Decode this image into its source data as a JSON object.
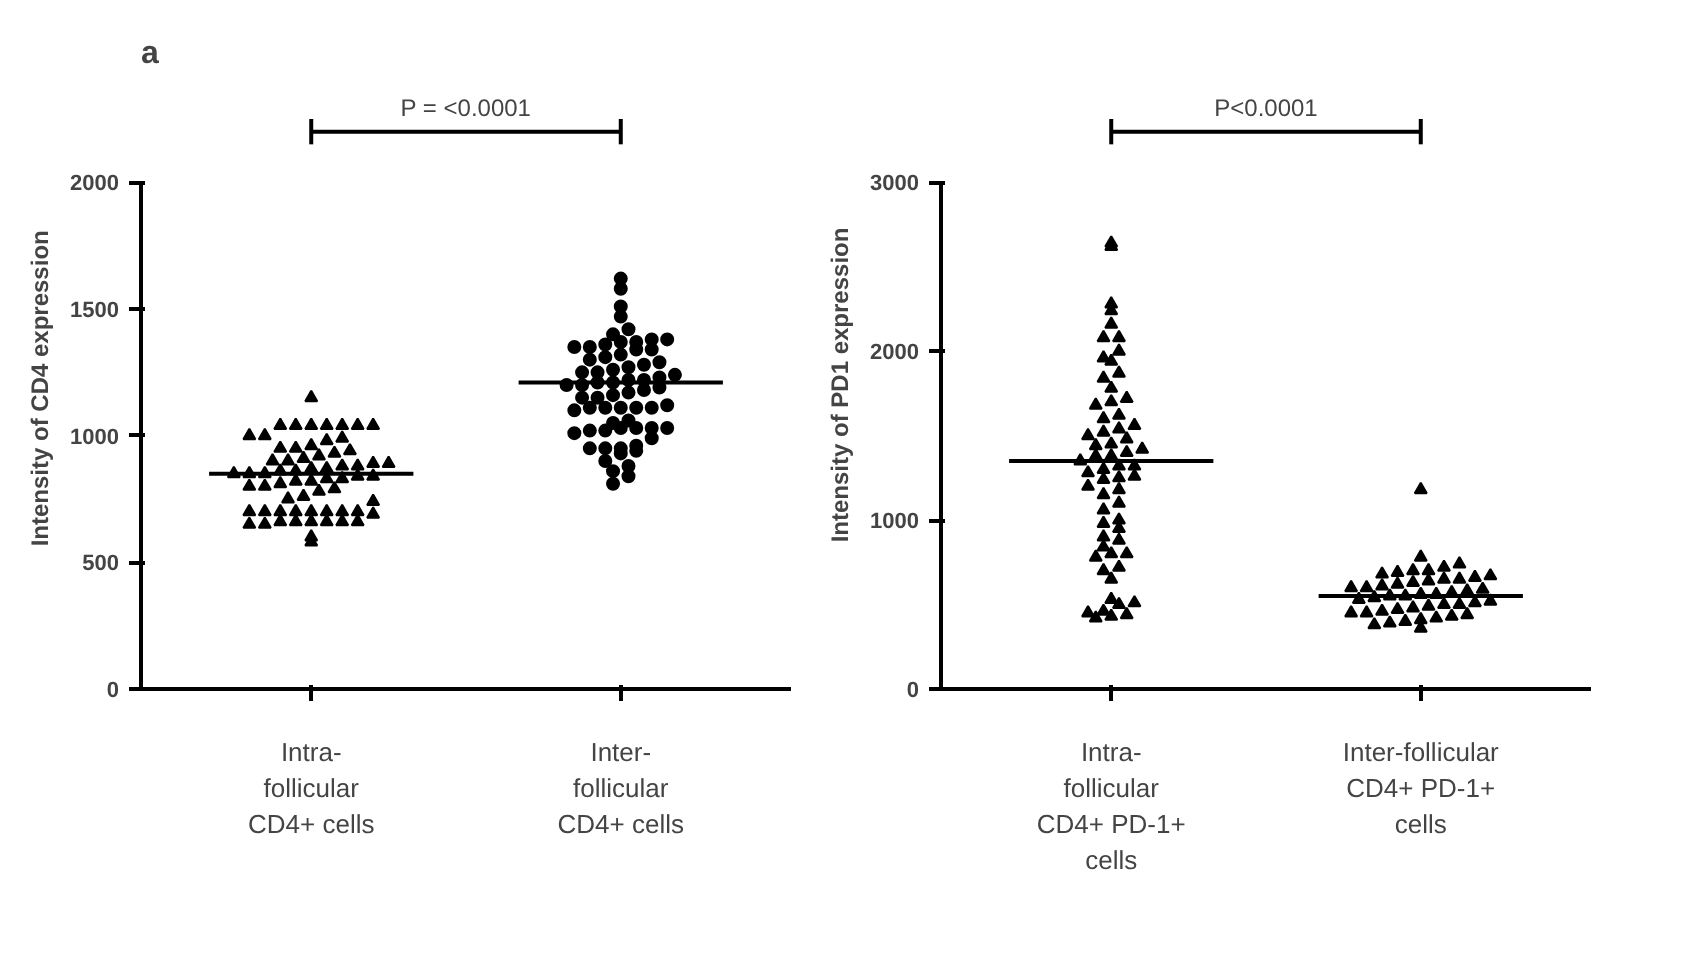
{
  "chart_data": [
    {
      "type": "scatter",
      "title": "a",
      "ylabel": "Intensity of  CD4 expression",
      "categories": [
        "Intra-\nfollicular\nCD4+ cells",
        "Inter-\nfollicular\nCD4+ cells"
      ],
      "ylim": [
        0,
        2000
      ],
      "yticks": [
        0,
        500,
        1000,
        1500,
        2000
      ],
      "grid": false,
      "annotations": [
        "P = <0.0001"
      ],
      "ref_lines": [
        {
          "axis": "y",
          "value": 850,
          "color": "#000000"
        },
        {
          "axis": "y",
          "value": 1210,
          "color": "#000000"
        }
      ],
      "series": [
        {
          "marker": "triangle",
          "color": "#000000",
          "values": [
            1150,
            1040,
            1040,
            1040,
            1040,
            1040,
            1040,
            1040,
            1000,
            1000,
            990,
            980,
            960,
            950,
            950,
            940,
            930,
            920,
            910,
            900,
            900,
            890,
            890,
            880,
            880,
            870,
            870,
            860,
            860,
            850,
            850,
            850,
            840,
            840,
            830,
            830,
            820,
            820,
            810,
            800,
            800,
            790,
            780,
            760,
            750,
            740,
            700,
            700,
            700,
            700,
            700,
            700,
            700,
            700,
            690,
            660,
            660,
            660,
            660,
            660,
            660,
            650,
            650,
            600,
            580
          ],
          "x": [
            "Intra-\nfollicular\nCD4+ cells",
            "Intra-\nfollicular\nCD4+ cells",
            "Intra-\nfollicular\nCD4+ cells",
            "Intra-\nfollicular\nCD4+ cells",
            "Intra-\nfollicular\nCD4+ cells",
            "Intra-\nfollicular\nCD4+ cells",
            "Intra-\nfollicular\nCD4+ cells",
            "Intra-\nfollicular\nCD4+ cells",
            "Intra-\nfollicular\nCD4+ cells",
            "Intra-\nfollicular\nCD4+ cells",
            "Intra-\nfollicular\nCD4+ cells",
            "Intra-\nfollicular\nCD4+ cells",
            "Intra-\nfollicular\nCD4+ cells",
            "Intra-\nfollicular\nCD4+ cells",
            "Intra-\nfollicular\nCD4+ cells",
            "Intra-\nfollicular\nCD4+ cells",
            "Intra-\nfollicular\nCD4+ cells",
            "Intra-\nfollicular\nCD4+ cells",
            "Intra-\nfollicular\nCD4+ cells",
            "Intra-\nfollicular\nCD4+ cells",
            "Intra-\nfollicular\nCD4+ cells",
            "Intra-\nfollicular\nCD4+ cells",
            "Intra-\nfollicular\nCD4+ cells",
            "Intra-\nfollicular\nCD4+ cells",
            "Intra-\nfollicular\nCD4+ cells",
            "Intra-\nfollicular\nCD4+ cells",
            "Intra-\nfollicular\nCD4+ cells",
            "Intra-\nfollicular\nCD4+ cells",
            "Intra-\nfollicular\nCD4+ cells",
            "Intra-\nfollicular\nCD4+ cells",
            "Intra-\nfollicular\nCD4+ cells",
            "Intra-\nfollicular\nCD4+ cells",
            "Intra-\nfollicular\nCD4+ cells",
            "Intra-\nfollicular\nCD4+ cells",
            "Intra-\nfollicular\nCD4+ cells",
            "Intra-\nfollicular\nCD4+ cells",
            "Intra-\nfollicular\nCD4+ cells",
            "Intra-\nfollicular\nCD4+ cells",
            "Intra-\nfollicular\nCD4+ cells",
            "Intra-\nfollicular\nCD4+ cells",
            "Intra-\nfollicular\nCD4+ cells",
            "Intra-\nfollicular\nCD4+ cells",
            "Intra-\nfollicular\nCD4+ cells",
            "Intra-\nfollicular\nCD4+ cells",
            "Intra-\nfollicular\nCD4+ cells",
            "Intra-\nfollicular\nCD4+ cells",
            "Intra-\nfollicular\nCD4+ cells",
            "Intra-\nfollicular\nCD4+ cells",
            "Intra-\nfollicular\nCD4+ cells",
            "Intra-\nfollicular\nCD4+ cells",
            "Intra-\nfollicular\nCD4+ cells",
            "Intra-\nfollicular\nCD4+ cells",
            "Intra-\nfollicular\nCD4+ cells",
            "Intra-\nfollicular\nCD4+ cells",
            "Intra-\nfollicular\nCD4+ cells",
            "Intra-\nfollicular\nCD4+ cells",
            "Intra-\nfollicular\nCD4+ cells",
            "Intra-\nfollicular\nCD4+ cells",
            "Intra-\nfollicular\nCD4+ cells",
            "Intra-\nfollicular\nCD4+ cells",
            "Intra-\nfollicular\nCD4+ cells",
            "Intra-\nfollicular\nCD4+ cells",
            "Intra-\nfollicular\nCD4+ cells",
            "Intra-\nfollicular\nCD4+ cells",
            "Intra-\nfollicular\nCD4+ cells"
          ]
        },
        {
          "marker": "circle",
          "color": "#000000",
          "values": [
            1620,
            1580,
            1510,
            1470,
            1420,
            1400,
            1380,
            1380,
            1370,
            1370,
            1360,
            1350,
            1350,
            1340,
            1340,
            1320,
            1310,
            1300,
            1290,
            1280,
            1270,
            1260,
            1250,
            1250,
            1240,
            1230,
            1220,
            1220,
            1210,
            1210,
            1200,
            1200,
            1190,
            1180,
            1170,
            1160,
            1150,
            1150,
            1120,
            1110,
            1110,
            1110,
            1110,
            1110,
            1100,
            1060,
            1050,
            1030,
            1030,
            1030,
            1030,
            1020,
            1020,
            1010,
            990,
            960,
            950,
            950,
            950,
            940,
            930,
            900,
            880,
            860,
            840,
            810
          ],
          "x": [
            "Inter-\nfollicular\nCD4+ cells",
            "Inter-\nfollicular\nCD4+ cells",
            "Inter-\nfollicular\nCD4+ cells",
            "Inter-\nfollicular\nCD4+ cells",
            "Inter-\nfollicular\nCD4+ cells",
            "Inter-\nfollicular\nCD4+ cells",
            "Inter-\nfollicular\nCD4+ cells",
            "Inter-\nfollicular\nCD4+ cells",
            "Inter-\nfollicular\nCD4+ cells",
            "Inter-\nfollicular\nCD4+ cells",
            "Inter-\nfollicular\nCD4+ cells",
            "Inter-\nfollicular\nCD4+ cells",
            "Inter-\nfollicular\nCD4+ cells",
            "Inter-\nfollicular\nCD4+ cells",
            "Inter-\nfollicular\nCD4+ cells",
            "Inter-\nfollicular\nCD4+ cells",
            "Inter-\nfollicular\nCD4+ cells",
            "Inter-\nfollicular\nCD4+ cells",
            "Inter-\nfollicular\nCD4+ cells",
            "Inter-\nfollicular\nCD4+ cells",
            "Inter-\nfollicular\nCD4+ cells",
            "Inter-\nfollicular\nCD4+ cells",
            "Inter-\nfollicular\nCD4+ cells",
            "Inter-\nfollicular\nCD4+ cells",
            "Inter-\nfollicular\nCD4+ cells",
            "Inter-\nfollicular\nCD4+ cells",
            "Inter-\nfollicular\nCD4+ cells",
            "Inter-\nfollicular\nCD4+ cells",
            "Inter-\nfollicular\nCD4+ cells",
            "Inter-\nfollicular\nCD4+ cells",
            "Inter-\nfollicular\nCD4+ cells",
            "Inter-\nfollicular\nCD4+ cells",
            "Inter-\nfollicular\nCD4+ cells",
            "Inter-\nfollicular\nCD4+ cells",
            "Inter-\nfollicular\nCD4+ cells",
            "Inter-\nfollicular\nCD4+ cells",
            "Inter-\nfollicular\nCD4+ cells",
            "Inter-\nfollicular\nCD4+ cells",
            "Inter-\nfollicular\nCD4+ cells",
            "Inter-\nfollicular\nCD4+ cells",
            "Inter-\nfollicular\nCD4+ cells",
            "Inter-\nfollicular\nCD4+ cells",
            "Inter-\nfollicular\nCD4+ cells",
            "Inter-\nfollicular\nCD4+ cells",
            "Inter-\nfollicular\nCD4+ cells",
            "Inter-\nfollicular\nCD4+ cells",
            "Inter-\nfollicular\nCD4+ cells",
            "Inter-\nfollicular\nCD4+ cells",
            "Inter-\nfollicular\nCD4+ cells",
            "Inter-\nfollicular\nCD4+ cells",
            "Inter-\nfollicular\nCD4+ cells",
            "Inter-\nfollicular\nCD4+ cells",
            "Inter-\nfollicular\nCD4+ cells",
            "Inter-\nfollicular\nCD4+ cells",
            "Inter-\nfollicular\nCD4+ cells",
            "Inter-\nfollicular\nCD4+ cells",
            "Inter-\nfollicular\nCD4+ cells",
            "Inter-\nfollicular\nCD4+ cells",
            "Inter-\nfollicular\nCD4+ cells",
            "Inter-\nfollicular\nCD4+ cells",
            "Inter-\nfollicular\nCD4+ cells",
            "Inter-\nfollicular\nCD4+ cells",
            "Inter-\nfollicular\nCD4+ cells",
            "Inter-\nfollicular\nCD4+ cells",
            "Inter-\nfollicular\nCD4+ cells",
            "Inter-\nfollicular\nCD4+ cells"
          ]
        }
      ]
    },
    {
      "type": "scatter",
      "ylabel": "Intensity of PD1 expression",
      "categories": [
        "Intra-\nfollicular\nCD4+ PD-1+\ncells",
        "Inter-follicular\nCD4+ PD-1+\ncells"
      ],
      "ylim": [
        0,
        3000
      ],
      "yticks": [
        0,
        1000,
        2000,
        3000
      ],
      "grid": false,
      "annotations": [
        "P<0.0001"
      ],
      "ref_lines": [
        {
          "axis": "y",
          "value": 1350,
          "color": "#000000"
        },
        {
          "axis": "y",
          "value": 550,
          "color": "#000000"
        }
      ],
      "series": [
        {
          "marker": "triangle",
          "color": "#000000",
          "values": [
            2640,
            2620,
            2280,
            2240,
            2160,
            2080,
            2080,
            2000,
            1960,
            1940,
            1870,
            1840,
            1780,
            1720,
            1700,
            1680,
            1620,
            1600,
            1560,
            1540,
            1520,
            1500,
            1480,
            1450,
            1440,
            1420,
            1400,
            1380,
            1380,
            1350,
            1320,
            1320,
            1300,
            1280,
            1260,
            1250,
            1240,
            1200,
            1180,
            1150,
            1100,
            1060,
            1000,
            980,
            950,
            900,
            880,
            840,
            800,
            800,
            780,
            720,
            700,
            650,
            530,
            510,
            500,
            460,
            450,
            440,
            430,
            420
          ],
          "x": [
            "Intra-\nfollicular\nCD4+ PD-1+\ncells",
            "Intra-\nfollicular\nCD4+ PD-1+\ncells",
            "Intra-\nfollicular\nCD4+ PD-1+\ncells",
            "Intra-\nfollicular\nCD4+ PD-1+\ncells",
            "Intra-\nfollicular\nCD4+ PD-1+\ncells",
            "Intra-\nfollicular\nCD4+ PD-1+\ncells",
            "Intra-\nfollicular\nCD4+ PD-1+\ncells",
            "Intra-\nfollicular\nCD4+ PD-1+\ncells",
            "Intra-\nfollicular\nCD4+ PD-1+\ncells",
            "Intra-\nfollicular\nCD4+ PD-1+\ncells",
            "Intra-\nfollicular\nCD4+ PD-1+\ncells",
            "Intra-\nfollicular\nCD4+ PD-1+\ncells",
            "Intra-\nfollicular\nCD4+ PD-1+\ncells",
            "Intra-\nfollicular\nCD4+ PD-1+\ncells",
            "Intra-\nfollicular\nCD4+ PD-1+\ncells",
            "Intra-\nfollicular\nCD4+ PD-1+\ncells",
            "Intra-\nfollicular\nCD4+ PD-1+\ncells",
            "Intra-\nfollicular\nCD4+ PD-1+\ncells",
            "Intra-\nfollicular\nCD4+ PD-1+\ncells",
            "Intra-\nfollicular\nCD4+ PD-1+\ncells",
            "Intra-\nfollicular\nCD4+ PD-1+\ncells",
            "Intra-\nfollicular\nCD4+ PD-1+\ncells",
            "Intra-\nfollicular\nCD4+ PD-1+\ncells",
            "Intra-\nfollicular\nCD4+ PD-1+\ncells",
            "Intra-\nfollicular\nCD4+ PD-1+\ncells",
            "Intra-\nfollicular\nCD4+ PD-1+\ncells",
            "Intra-\nfollicular\nCD4+ PD-1+\ncells",
            "Intra-\nfollicular\nCD4+ PD-1+\ncells",
            "Intra-\nfollicular\nCD4+ PD-1+\ncells",
            "Intra-\nfollicular\nCD4+ PD-1+\ncells",
            "Intra-\nfollicular\nCD4+ PD-1+\ncells",
            "Intra-\nfollicular\nCD4+ PD-1+\ncells",
            "Intra-\nfollicular\nCD4+ PD-1+\ncells",
            "Intra-\nfollicular\nCD4+ PD-1+\ncells",
            "Intra-\nfollicular\nCD4+ PD-1+\ncells",
            "Intra-\nfollicular\nCD4+ PD-1+\ncells",
            "Intra-\nfollicular\nCD4+ PD-1+\ncells",
            "Intra-\nfollicular\nCD4+ PD-1+\ncells",
            "Intra-\nfollicular\nCD4+ PD-1+\ncells",
            "Intra-\nfollicular\nCD4+ PD-1+\ncells",
            "Intra-\nfollicular\nCD4+ PD-1+\ncells",
            "Intra-\nfollicular\nCD4+ PD-1+\ncells",
            "Intra-\nfollicular\nCD4+ PD-1+\ncells",
            "Intra-\nfollicular\nCD4+ PD-1+\ncells",
            "Intra-\nfollicular\nCD4+ PD-1+\ncells",
            "Intra-\nfollicular\nCD4+ PD-1+\ncells",
            "Intra-\nfollicular\nCD4+ PD-1+\ncells",
            "Intra-\nfollicular\nCD4+ PD-1+\ncells",
            "Intra-\nfollicular\nCD4+ PD-1+\ncells",
            "Intra-\nfollicular\nCD4+ PD-1+\ncells",
            "Intra-\nfollicular\nCD4+ PD-1+\ncells",
            "Intra-\nfollicular\nCD4+ PD-1+\ncells",
            "Intra-\nfollicular\nCD4+ PD-1+\ncells",
            "Intra-\nfollicular\nCD4+ PD-1+\ncells",
            "Intra-\nfollicular\nCD4+ PD-1+\ncells",
            "Intra-\nfollicular\nCD4+ PD-1+\ncells",
            "Intra-\nfollicular\nCD4+ PD-1+\ncells",
            "Intra-\nfollicular\nCD4+ PD-1+\ncells",
            "Intra-\nfollicular\nCD4+ PD-1+\ncells",
            "Intra-\nfollicular\nCD4+ PD-1+\ncells",
            "Intra-\nfollicular\nCD4+ PD-1+\ncells",
            "Intra-\nfollicular\nCD4+ PD-1+\ncells"
          ]
        },
        {
          "marker": "triangle",
          "color": "#000000",
          "values": [
            1180,
            780,
            740,
            720,
            700,
            700,
            690,
            680,
            670,
            660,
            650,
            650,
            640,
            630,
            620,
            610,
            600,
            600,
            590,
            580,
            570,
            560,
            560,
            550,
            550,
            540,
            530,
            520,
            510,
            500,
            500,
            490,
            480,
            470,
            460,
            450,
            450,
            440,
            430,
            420,
            410,
            400,
            390,
            380,
            360
          ],
          "x": [
            "Inter-follicular\nCD4+ PD-1+\ncells",
            "Inter-follicular\nCD4+ PD-1+\ncells",
            "Inter-follicular\nCD4+ PD-1+\ncells",
            "Inter-follicular\nCD4+ PD-1+\ncells",
            "Inter-follicular\nCD4+ PD-1+\ncells",
            "Inter-follicular\nCD4+ PD-1+\ncells",
            "Inter-follicular\nCD4+ PD-1+\ncells",
            "Inter-follicular\nCD4+ PD-1+\ncells",
            "Inter-follicular\nCD4+ PD-1+\ncells",
            "Inter-follicular\nCD4+ PD-1+\ncells",
            "Inter-follicular\nCD4+ PD-1+\ncells",
            "Inter-follicular\nCD4+ PD-1+\ncells",
            "Inter-follicular\nCD4+ PD-1+\ncells",
            "Inter-follicular\nCD4+ PD-1+\ncells",
            "Inter-follicular\nCD4+ PD-1+\ncells",
            "Inter-follicular\nCD4+ PD-1+\ncells",
            "Inter-follicular\nCD4+ PD-1+\ncells",
            "Inter-follicular\nCD4+ PD-1+\ncells",
            "Inter-follicular\nCD4+ PD-1+\ncells",
            "Inter-follicular\nCD4+ PD-1+\ncells",
            "Inter-follicular\nCD4+ PD-1+\ncells",
            "Inter-follicular\nCD4+ PD-1+\ncells",
            "Inter-follicular\nCD4+ PD-1+\ncells",
            "Inter-follicular\nCD4+ PD-1+\ncells",
            "Inter-follicular\nCD4+ PD-1+\ncells",
            "Inter-follicular\nCD4+ PD-1+\ncells",
            "Inter-follicular\nCD4+ PD-1+\ncells",
            "Inter-follicular\nCD4+ PD-1+\ncells",
            "Inter-follicular\nCD4+ PD-1+\ncells",
            "Inter-follicular\nCD4+ PD-1+\ncells",
            "Inter-follicular\nCD4+ PD-1+\ncells",
            "Inter-follicular\nCD4+ PD-1+\ncells",
            "Inter-follicular\nCD4+ PD-1+\ncells",
            "Inter-follicular\nCD4+ PD-1+\ncells",
            "Inter-follicular\nCD4+ PD-1+\ncells",
            "Inter-follicular\nCD4+ PD-1+\ncells",
            "Inter-follicular\nCD4+ PD-1+\ncells",
            "Inter-follicular\nCD4+ PD-1+\ncells",
            "Inter-follicular\nCD4+ PD-1+\ncells",
            "Inter-follicular\nCD4+ PD-1+\ncells",
            "Inter-follicular\nCD4+ PD-1+\ncells",
            "Inter-follicular\nCD4+ PD-1+\ncells",
            "Inter-follicular\nCD4+ PD-1+\ncells",
            "Inter-follicular\nCD4+ PD-1+\ncells",
            "Inter-follicular\nCD4+ PD-1+\ncells"
          ]
        }
      ]
    }
  ]
}
